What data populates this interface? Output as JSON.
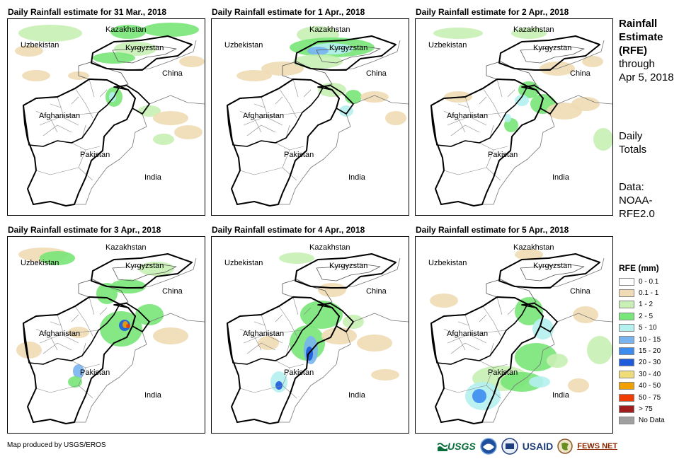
{
  "panels": [
    {
      "title": "Daily Rainfall estimate for 31 Mar., 2018"
    },
    {
      "title": "Daily Rainfall estimate for 1 Apr., 2018"
    },
    {
      "title": "Daily Rainfall estimate for 2 Apr., 2018"
    },
    {
      "title": "Daily Rainfall estimate for 3 Apr., 2018"
    },
    {
      "title": "Daily Rainfall estimate for 4 Apr., 2018"
    },
    {
      "title": "Daily Rainfall estimate for 5 Apr., 2018"
    }
  ],
  "map_labels": {
    "kazakhstan": "Kazakhstan",
    "uzbekistan": "Uzbekistan",
    "kyrgyzstan": "Kyrgyzstan",
    "china": "China",
    "afghanistan": "Afghanistan",
    "pakistan": "Pakistan",
    "india": "India"
  },
  "side": {
    "title_lines": [
      "Rainfall",
      "Estimate",
      "(RFE)"
    ],
    "through": "through",
    "date": "Apr 5, 2018",
    "totals_lines": [
      "Daily",
      "Totals"
    ],
    "data_lines": [
      "Data:",
      "NOAA-",
      "RFE2.0"
    ]
  },
  "legend": {
    "title": "RFE (mm)",
    "items": [
      {
        "label": "0 - 0.1",
        "color": "#ffffff"
      },
      {
        "label": "0.1 - 1",
        "color": "#f0dcb4"
      },
      {
        "label": "1 - 2",
        "color": "#c8f0b4"
      },
      {
        "label": "2 - 5",
        "color": "#78e678"
      },
      {
        "label": "5 - 10",
        "color": "#b4f0f0"
      },
      {
        "label": "10 - 15",
        "color": "#78b4f0"
      },
      {
        "label": "15 - 20",
        "color": "#3c8cf0"
      },
      {
        "label": "20 - 30",
        "color": "#1e5adc"
      },
      {
        "label": "30 - 40",
        "color": "#f0dc78"
      },
      {
        "label": "40 - 50",
        "color": "#f0a000"
      },
      {
        "label": "50 - 75",
        "color": "#f03c00"
      },
      {
        "label": "> 75",
        "color": "#a01e1e"
      },
      {
        "label": "No Data",
        "color": "#a0a0a0"
      }
    ]
  },
  "credit": "Map produced by USGS/EROS",
  "logos": {
    "usgs": "USGS",
    "usaid": "USAID",
    "fewsnet": "FEWS NET"
  }
}
